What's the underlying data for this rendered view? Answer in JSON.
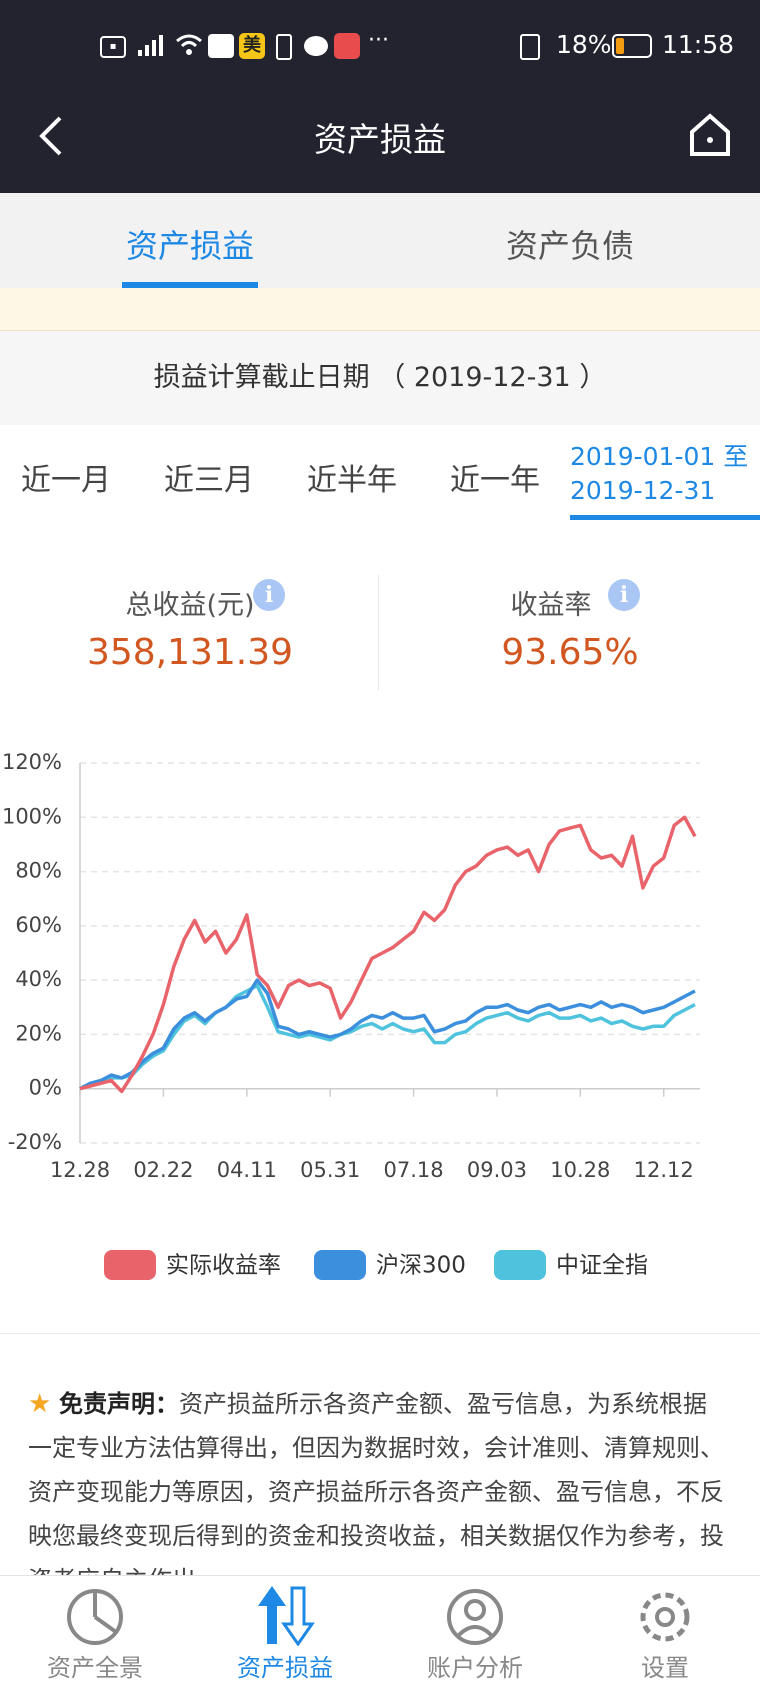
{
  "status_bar": {
    "carrier_badge": "美",
    "battery": "18%",
    "time": "11:58"
  },
  "header": {
    "title": "资产损益"
  },
  "tabs": [
    "资产损益",
    "资产负债"
  ],
  "date_line": "损益计算截止日期 （ 2019-12-31 ）",
  "periods": [
    "近一月",
    "近三月",
    "近半年",
    "近一年"
  ],
  "custom_range": {
    "start": "2019-01-01",
    "to": "至",
    "end": "2019-12-31"
  },
  "summary": {
    "total_label": "总收益(元)",
    "total_value": "358,131.39",
    "rate_label": "收益率",
    "rate_value": "93.65%"
  },
  "chart_data": {
    "type": "line",
    "categories": [
      "12.28",
      null,
      null,
      null,
      null,
      null,
      null,
      null,
      "02.22",
      null,
      null,
      null,
      null,
      null,
      null,
      null,
      "04.11",
      null,
      null,
      null,
      null,
      null,
      null,
      null,
      "05.31",
      null,
      null,
      null,
      null,
      null,
      null,
      null,
      "07.18",
      null,
      null,
      null,
      null,
      null,
      null,
      null,
      "09.03",
      null,
      null,
      null,
      null,
      null,
      null,
      null,
      "10.28",
      null,
      null,
      null,
      null,
      null,
      null,
      null,
      "12.12",
      null,
      null,
      null
    ],
    "series": [
      {
        "name": "实际收益率",
        "color": "#e8636a",
        "values": [
          0,
          1,
          2,
          3,
          -1,
          5,
          12,
          20,
          31,
          45,
          55,
          62,
          54,
          58,
          50,
          55,
          64,
          42,
          38,
          30,
          38,
          40,
          38,
          39,
          37,
          26,
          32,
          40,
          48,
          50,
          52,
          55,
          58,
          65,
          62,
          66,
          75,
          80,
          82,
          86,
          88,
          89,
          86,
          88,
          80,
          90,
          95,
          96,
          97,
          88,
          85,
          86,
          82,
          93,
          74,
          82,
          85,
          97,
          100,
          93
        ]
      },
      {
        "name": "沪深300",
        "color": "#3b8fdc",
        "values": [
          0,
          2,
          3,
          5,
          4,
          6,
          10,
          13,
          15,
          22,
          26,
          28,
          25,
          28,
          30,
          33,
          34,
          40,
          35,
          23,
          22,
          20,
          21,
          20,
          19,
          20,
          22,
          25,
          27,
          26,
          28,
          26,
          26,
          27,
          21,
          22,
          24,
          25,
          28,
          30,
          30,
          31,
          29,
          28,
          30,
          31,
          29,
          30,
          31,
          30,
          32,
          30,
          31,
          30,
          28,
          29,
          30,
          32,
          34,
          36
        ]
      },
      {
        "name": "中证全指",
        "color": "#4fc3dd",
        "values": [
          0,
          2,
          3,
          4,
          4,
          5,
          9,
          12,
          14,
          20,
          25,
          27,
          24,
          28,
          30,
          34,
          36,
          38,
          30,
          21,
          20,
          19,
          20,
          19,
          18,
          20,
          21,
          23,
          24,
          22,
          24,
          22,
          21,
          22,
          17,
          17,
          20,
          21,
          24,
          26,
          27,
          28,
          26,
          25,
          27,
          28,
          26,
          26,
          27,
          25,
          26,
          24,
          25,
          23,
          22,
          23,
          23,
          27,
          29,
          31
        ]
      }
    ],
    "ylim": [
      -20,
      120
    ],
    "yticks": [
      {
        "value": -20,
        "label": "-20%"
      },
      {
        "value": 0,
        "label": "0%"
      },
      {
        "value": 20,
        "label": "20%"
      },
      {
        "value": 40,
        "label": "40%"
      },
      {
        "value": 60,
        "label": "60%"
      },
      {
        "value": 80,
        "label": "80%"
      },
      {
        "value": 100,
        "label": "100%"
      },
      {
        "value": 120,
        "label": "120%"
      }
    ],
    "grid": true
  },
  "disclaimer": {
    "heading": "免责声明：",
    "text": "资产损益所示各资产金额、盈亏信息，为系统根据一定专业方法估算得出，但因为数据时效，会计准则、清算规则、资产变现能力等原因，资产损益所示各资产金额、盈亏信息，不反映您最终变现后得到的资金和投资收益，相关数据仅作为参考，投资者应自主作出"
  },
  "bottom_nav": [
    "资产全景",
    "资产损益",
    "账户分析",
    "设置"
  ]
}
